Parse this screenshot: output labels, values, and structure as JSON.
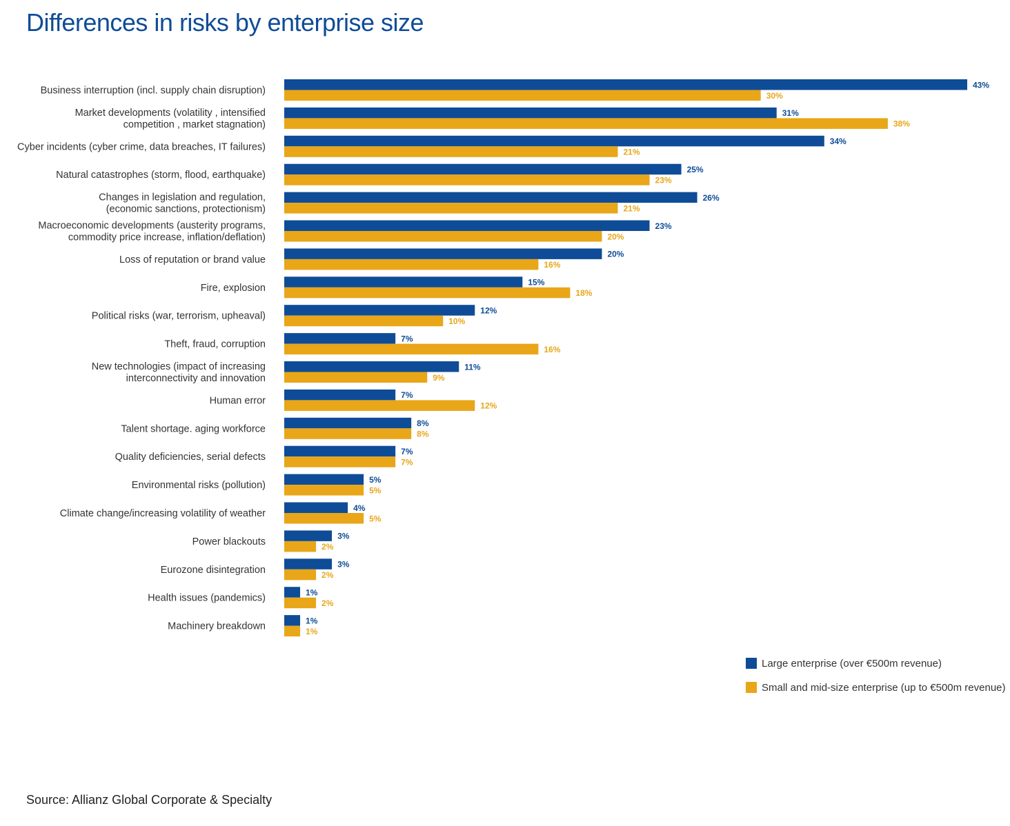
{
  "page": {
    "title": "Differences in risks by enterprise size",
    "source": "Source: Allianz Global Corporate & Specialty"
  },
  "colors": {
    "title": "#0f4c97",
    "large": "#0f4c97",
    "small": "#e8a618",
    "label_text": "#333333"
  },
  "chart_data": {
    "type": "bar",
    "orientation": "horizontal",
    "title": "Differences in risks by enterprise size",
    "categories": [
      [
        "Business interruption (incl. supply chain disruption)"
      ],
      [
        "Market developments (volatility , intensified",
        "competition , market stagnation)"
      ],
      [
        "Cyber incidents (cyber crime, data breaches, IT failures)"
      ],
      [
        "Natural catastrophes (storm, flood, earthquake)"
      ],
      [
        "Changes in legislation and regulation,",
        "(economic sanctions, protectionism)"
      ],
      [
        "Macroeconomic developments (austerity programs,",
        "commodity price increase, inflation/deflation)"
      ],
      [
        "Loss of reputation or brand value"
      ],
      [
        "Fire, explosion"
      ],
      [
        "Political risks (war, terrorism, upheaval)"
      ],
      [
        "Theft, fraud, corruption"
      ],
      [
        "New technologies (impact of increasing",
        "interconnectivity and innovation"
      ],
      [
        "Human error"
      ],
      [
        "Talent shortage. aging workforce"
      ],
      [
        "Quality deficiencies, serial defects"
      ],
      [
        "Environmental risks (pollution)"
      ],
      [
        "Climate change/increasing volatility of weather"
      ],
      [
        "Power blackouts"
      ],
      [
        "Eurozone disintegration"
      ],
      [
        "Health issues (pandemics)"
      ],
      [
        "Machinery breakdown"
      ]
    ],
    "series": [
      {
        "name": "Large enterprise (over €500m revenue)",
        "values": [
          43,
          31,
          34,
          25,
          26,
          23,
          20,
          15,
          12,
          7,
          11,
          7,
          8,
          7,
          5,
          4,
          3,
          3,
          1,
          1
        ]
      },
      {
        "name": "Small and mid-size enterprise (up to €500m revenue)",
        "values": [
          30,
          38,
          21,
          23,
          21,
          20,
          16,
          18,
          10,
          16,
          9,
          12,
          8,
          7,
          5,
          5,
          2,
          2,
          2,
          1
        ]
      }
    ],
    "value_suffix": "%",
    "xlim": [
      0,
      43
    ],
    "grid": false,
    "legend_position": "bottom-right"
  }
}
